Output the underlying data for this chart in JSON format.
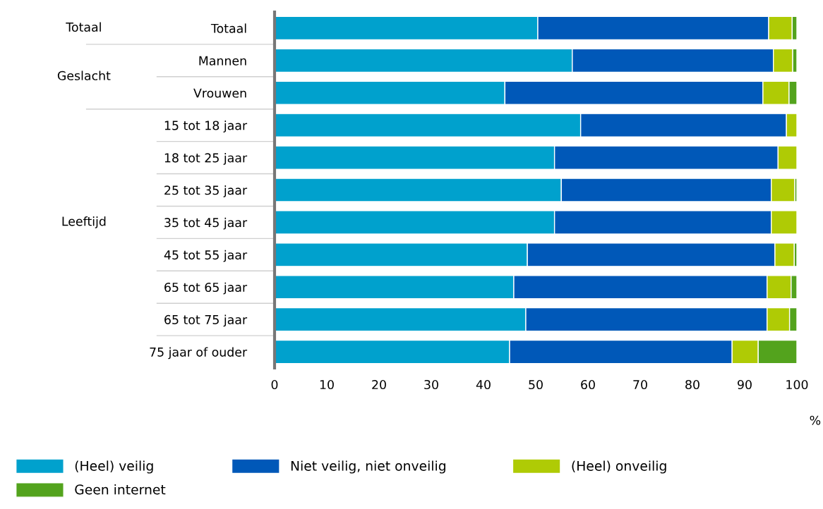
{
  "chart_data": {
    "type": "bar",
    "orientation": "horizontal",
    "stacked": true,
    "categories": [
      "Totaal",
      "Mannen",
      "Vrouwen",
      "15 tot 18 jaar",
      "18 tot 25 jaar",
      "25 tot 35 jaar",
      "35 tot 45 jaar",
      "45 tot 55 jaar",
      "65 tot 65 jaar",
      "65 tot 75 jaar",
      "75 jaar of ouder"
    ],
    "series": [
      {
        "name": "(Heel) veilig",
        "color": "#00a1cd",
        "values": [
          50.4,
          57.0,
          44.1,
          58.6,
          53.6,
          54.9,
          53.6,
          48.4,
          45.8,
          48.1,
          45.0
        ]
      },
      {
        "name": "Niet veilig, niet onveilig",
        "color": "#0058b8",
        "values": [
          44.2,
          38.5,
          49.4,
          39.4,
          42.8,
          40.2,
          41.5,
          47.4,
          48.5,
          46.2,
          42.6
        ]
      },
      {
        "name": "(Heel) onveilig",
        "color": "#afcb05",
        "values": [
          4.5,
          3.7,
          5.0,
          2.0,
          3.6,
          4.5,
          4.9,
          3.7,
          4.6,
          4.3,
          5.0
        ]
      },
      {
        "name": "Geen internet",
        "color": "#53a31d",
        "values": [
          0.9,
          0.8,
          1.5,
          0.0,
          0.0,
          0.4,
          0.0,
          0.5,
          1.1,
          1.4,
          7.4
        ]
      }
    ],
    "xlim": [
      0,
      100
    ],
    "xticks": [
      0,
      10,
      20,
      30,
      40,
      50,
      60,
      70,
      80,
      90,
      100
    ],
    "xlabel": "%",
    "annotations": [
      "Totaal",
      "Geslacht",
      "Leeftijd"
    ],
    "legend": "bottom",
    "grid": false
  }
}
